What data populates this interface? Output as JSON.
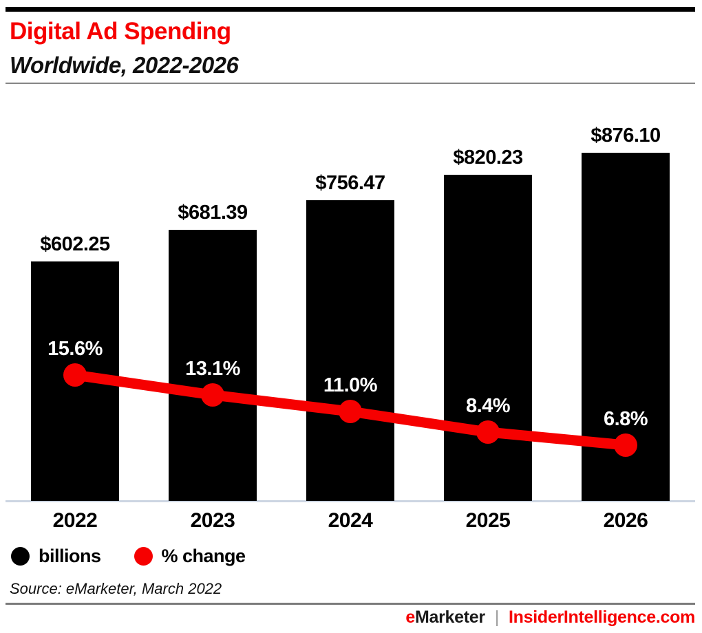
{
  "page": {
    "title": "Digital Ad Spending",
    "subtitle": "Worldwide, 2022-2026",
    "source": "Source: eMarketer, March 2022",
    "footer": {
      "brand_first_letter": "e",
      "brand_rest": "Marketer",
      "divider": "|",
      "site": "InsiderIntelligence.com"
    },
    "colors": {
      "accent_red": "#f60000",
      "bar_black": "#000000",
      "axis_line": "#ccd5e2",
      "header_rule": "#858585",
      "footer_rule": "#7b7b7b",
      "pct_label_text": "#ffffff"
    }
  },
  "legend": [
    {
      "label": "billions",
      "color": "#000000",
      "swatch": "black-circle"
    },
    {
      "label": "% change",
      "color": "#f60000",
      "swatch": "red-circle"
    }
  ],
  "chart_data": {
    "type": "bar",
    "title": "Digital Ad Spending",
    "subtitle": "Worldwide, 2022-2026",
    "categories": [
      "2022",
      "2023",
      "2024",
      "2025",
      "2026"
    ],
    "series": [
      {
        "name": "billions",
        "type": "bar",
        "color": "#000000",
        "values": [
          602.25,
          681.39,
          756.47,
          820.23,
          876.1
        ],
        "labels": [
          "$602.25",
          "$681.39",
          "$756.47",
          "$820.23",
          "$876.10"
        ]
      },
      {
        "name": "% change",
        "type": "line",
        "color": "#f60000",
        "values": [
          15.6,
          13.1,
          11.0,
          8.4,
          6.8
        ],
        "labels": [
          "15.6%",
          "13.1%",
          "11.0%",
          "8.4%",
          "6.8%"
        ]
      }
    ],
    "ylim_bar": [
      0,
      876.1
    ],
    "grid": false,
    "legend_position": "bottom",
    "value_labels_shown": true
  }
}
